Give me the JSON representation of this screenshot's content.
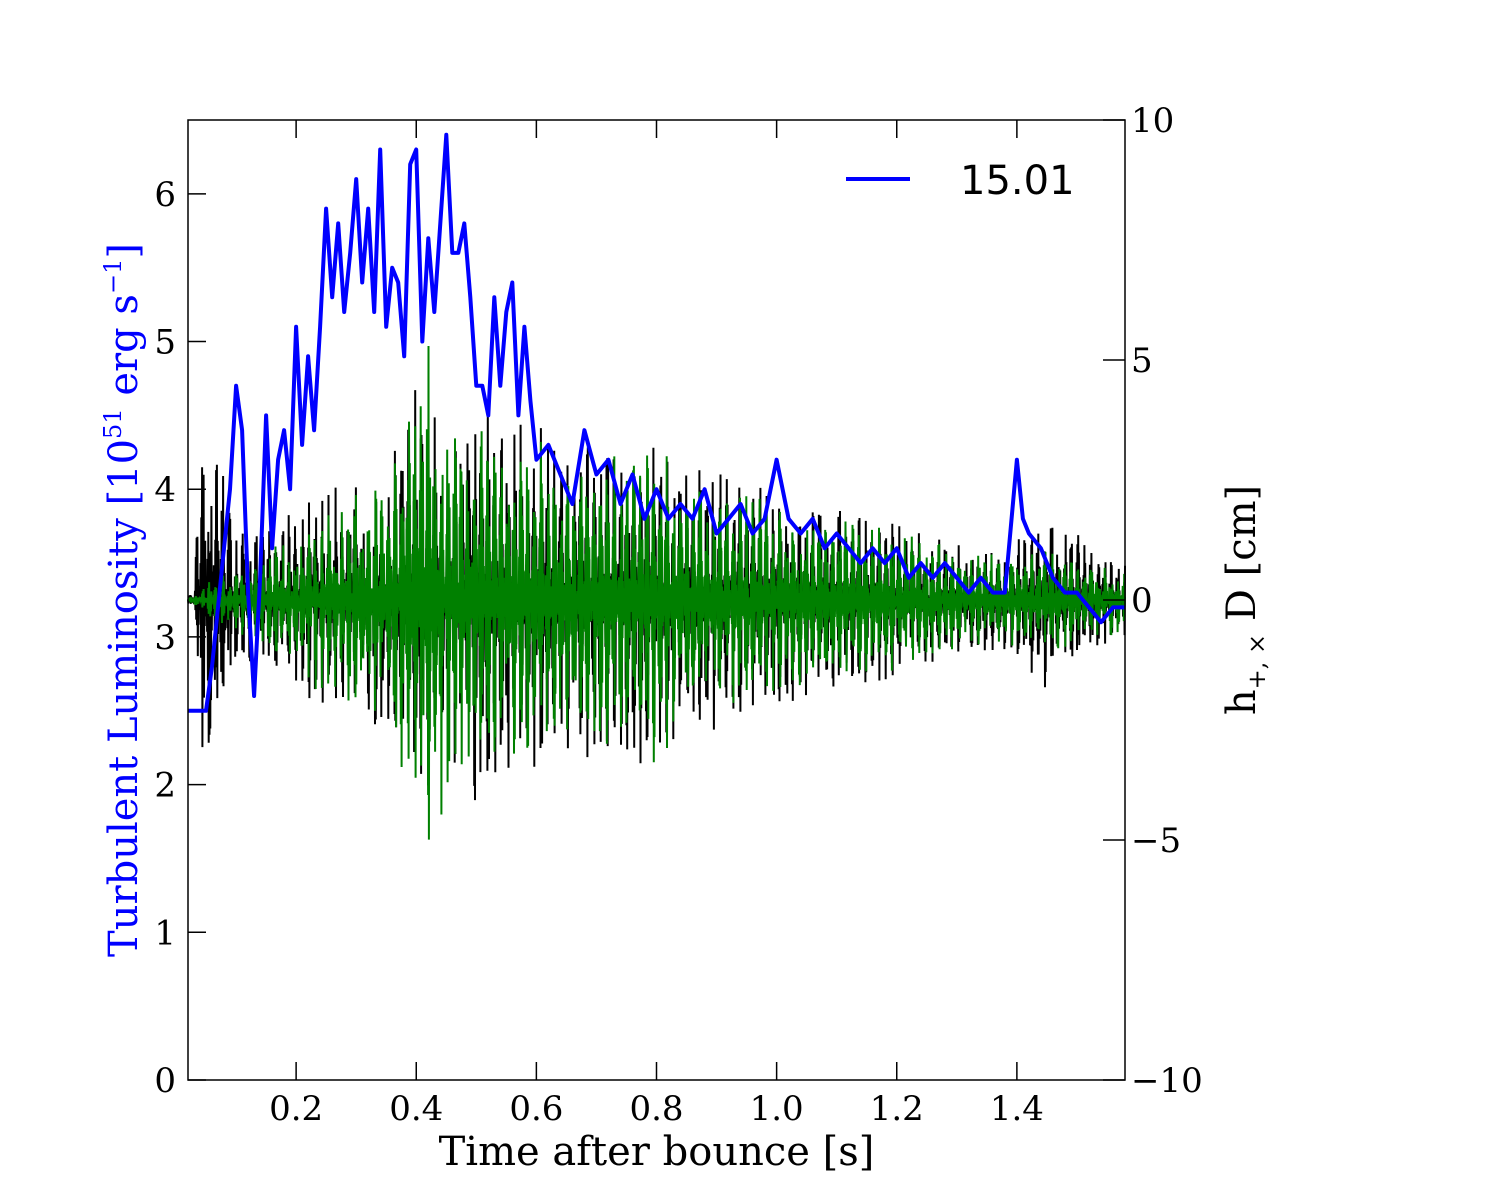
{
  "chart_data": {
    "type": "line",
    "title": "",
    "xlabel": "Time after bounce [s]",
    "ylabel_left": {
      "prefix": "Turbulent Luminosity [10",
      "sup": "51",
      "middle": " erg s",
      "sup2": "−1",
      "suffix": "]"
    },
    "ylabel_right": {
      "prefix": "h",
      "sub": "+, ×",
      "suffix": " D [cm]"
    },
    "xlim": [
      0.02,
      1.58
    ],
    "ylim_left": [
      0,
      6.5
    ],
    "ylim_right": [
      -10,
      10
    ],
    "grid": false,
    "legend_position": "top-right",
    "x_ticks": [
      "0.2",
      "0.4",
      "0.6",
      "0.8",
      "1.0",
      "1.2",
      "1.4"
    ],
    "x_tick_values": [
      0.2,
      0.4,
      0.6,
      0.8,
      1.0,
      1.2,
      1.4
    ],
    "left_ticks": [
      "0",
      "1",
      "2",
      "3",
      "4",
      "5",
      "6"
    ],
    "left_tick_values": [
      0,
      1,
      2,
      3,
      4,
      5,
      6
    ],
    "right_ticks": [
      "−10",
      "−5",
      "0",
      "5",
      "10"
    ],
    "right_tick_values": [
      -10,
      -5,
      0,
      5,
      10
    ],
    "colors": {
      "luminosity": "#0000ff",
      "h_cross": "#000000",
      "h_plus": "#008000",
      "left_axis_label": "#0000ff",
      "right_axis_label": "#000000"
    },
    "series": [
      {
        "name": "15.01",
        "axis": "left",
        "x": [
          0.02,
          0.045,
          0.05,
          0.06,
          0.07,
          0.08,
          0.09,
          0.1,
          0.11,
          0.12,
          0.13,
          0.14,
          0.15,
          0.16,
          0.17,
          0.18,
          0.19,
          0.2,
          0.21,
          0.22,
          0.23,
          0.24,
          0.25,
          0.26,
          0.27,
          0.28,
          0.29,
          0.3,
          0.31,
          0.32,
          0.33,
          0.34,
          0.35,
          0.36,
          0.37,
          0.38,
          0.39,
          0.4,
          0.41,
          0.42,
          0.43,
          0.44,
          0.45,
          0.46,
          0.47,
          0.48,
          0.49,
          0.5,
          0.51,
          0.52,
          0.53,
          0.54,
          0.55,
          0.56,
          0.57,
          0.58,
          0.59,
          0.6,
          0.62,
          0.64,
          0.66,
          0.68,
          0.7,
          0.72,
          0.74,
          0.76,
          0.78,
          0.8,
          0.82,
          0.84,
          0.86,
          0.88,
          0.9,
          0.92,
          0.94,
          0.96,
          0.98,
          1.0,
          1.02,
          1.04,
          1.06,
          1.08,
          1.1,
          1.12,
          1.14,
          1.16,
          1.18,
          1.2,
          1.22,
          1.24,
          1.26,
          1.28,
          1.3,
          1.32,
          1.34,
          1.36,
          1.38,
          1.4,
          1.41,
          1.42,
          1.44,
          1.46,
          1.48,
          1.5,
          1.52,
          1.54,
          1.56,
          1.58
        ],
        "values": [
          2.5,
          2.5,
          2.5,
          2.8,
          3.2,
          3.6,
          4.0,
          4.7,
          4.4,
          3.3,
          2.6,
          3.4,
          4.5,
          3.6,
          4.2,
          4.4,
          4.0,
          5.1,
          4.3,
          4.9,
          4.4,
          5.1,
          5.9,
          5.3,
          5.8,
          5.2,
          5.6,
          6.1,
          5.4,
          5.9,
          5.2,
          6.3,
          5.1,
          5.5,
          5.4,
          4.9,
          6.2,
          6.3,
          5.0,
          5.7,
          5.2,
          5.8,
          6.4,
          5.6,
          5.6,
          5.8,
          5.3,
          4.7,
          4.7,
          4.5,
          5.3,
          4.7,
          5.2,
          5.4,
          4.5,
          5.1,
          4.6,
          4.2,
          4.3,
          4.1,
          3.9,
          4.4,
          4.1,
          4.2,
          3.9,
          4.1,
          3.8,
          4.0,
          3.8,
          3.9,
          3.8,
          4.0,
          3.7,
          3.8,
          3.9,
          3.7,
          3.8,
          4.2,
          3.8,
          3.7,
          3.8,
          3.6,
          3.7,
          3.6,
          3.5,
          3.6,
          3.5,
          3.6,
          3.4,
          3.5,
          3.4,
          3.5,
          3.4,
          3.3,
          3.4,
          3.3,
          3.3,
          4.2,
          3.8,
          3.7,
          3.6,
          3.4,
          3.3,
          3.3,
          3.2,
          3.1,
          3.2,
          3.2
        ]
      },
      {
        "name": "",
        "axis": "right",
        "envelope": {
          "x": [
            0.02,
            0.03,
            0.04,
            0.05,
            0.06,
            0.08,
            0.1,
            0.15,
            0.2,
            0.25,
            0.3,
            0.35,
            0.4,
            0.45,
            0.5,
            0.55,
            0.6,
            0.65,
            0.7,
            0.75,
            0.8,
            0.85,
            0.9,
            0.95,
            1.0,
            1.05,
            1.1,
            1.15,
            1.2,
            1.25,
            1.3,
            1.35,
            1.4,
            1.45,
            1.5,
            1.55,
            1.58
          ],
          "amplitude": [
            0.1,
            0.2,
            3.0,
            4.2,
            4.5,
            3.0,
            1.5,
            1.5,
            2.0,
            2.3,
            2.5,
            2.8,
            4.5,
            3.5,
            4.6,
            3.8,
            4.0,
            3.5,
            3.2,
            3.5,
            3.3,
            3.0,
            3.0,
            2.5,
            2.5,
            2.2,
            2.2,
            1.8,
            1.6,
            1.4,
            1.3,
            1.2,
            1.3,
            1.9,
            1.4,
            1.0,
            0.8
          ]
        }
      },
      {
        "name": "",
        "axis": "right",
        "envelope": {
          "x": [
            0.02,
            0.03,
            0.04,
            0.05,
            0.08,
            0.1,
            0.15,
            0.2,
            0.25,
            0.3,
            0.35,
            0.4,
            0.42,
            0.45,
            0.5,
            0.55,
            0.6,
            0.65,
            0.7,
            0.75,
            0.8,
            0.85,
            0.9,
            0.95,
            1.0,
            1.05,
            1.1,
            1.15,
            1.2,
            1.25,
            1.3,
            1.35,
            1.4,
            1.45,
            1.5,
            1.55,
            1.58
          ],
          "amplitude": [
            0.05,
            0.1,
            0.2,
            0.4,
            0.6,
            0.7,
            1.0,
            1.6,
            2.0,
            2.4,
            2.6,
            5.0,
            5.5,
            4.2,
            3.6,
            3.4,
            3.5,
            3.0,
            3.2,
            3.0,
            3.5,
            2.6,
            2.4,
            2.4,
            2.0,
            1.8,
            1.8,
            1.6,
            1.6,
            1.3,
            1.1,
            1.0,
            1.0,
            1.2,
            0.9,
            0.8,
            0.6
          ]
        }
      }
    ]
  }
}
